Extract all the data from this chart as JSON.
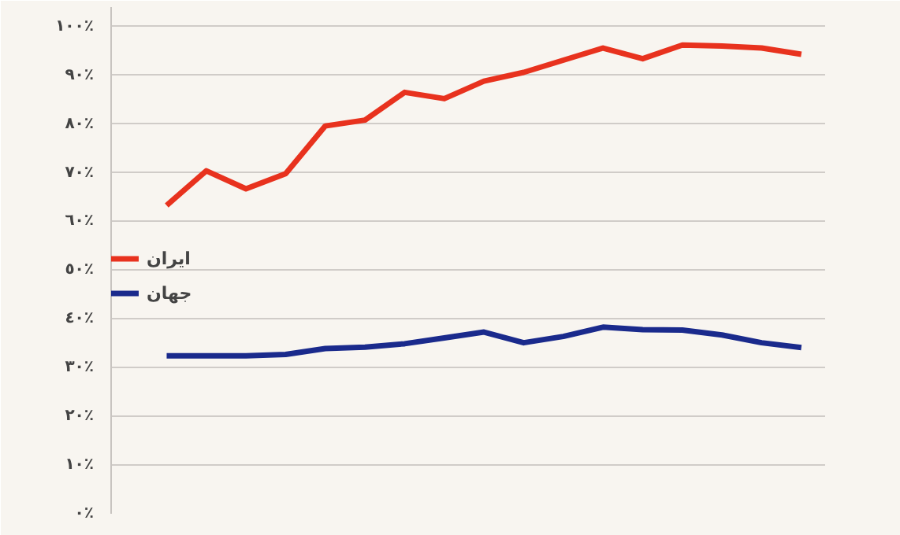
{
  "chart_data": {
    "type": "line",
    "categories": [
      null,
      null,
      null,
      null,
      null,
      null,
      null,
      null,
      null,
      null,
      null,
      null,
      null,
      null,
      null,
      null,
      null
    ],
    "series": [
      {
        "name": "ایران",
        "color": "#e8321e",
        "values": [
          63.3,
          70.4,
          66.7,
          69.8,
          79.6,
          80.8,
          86.5,
          85.2,
          88.8,
          90.6,
          93.1,
          95.6,
          93.4,
          96.2,
          96.0,
          95.6,
          94.3
        ]
      },
      {
        "name": "جهان",
        "color": "#1a2a8c",
        "values": [
          32.4,
          32.4,
          32.4,
          32.7,
          33.9,
          34.2,
          34.9,
          36.1,
          37.3,
          35.1,
          36.4,
          38.3,
          37.8,
          37.7,
          36.7,
          35.1,
          34.1
        ]
      }
    ],
    "ylim": [
      0,
      104
    ],
    "yticks": [
      {
        "value": 0,
        "label": "٠٪"
      },
      {
        "value": 10,
        "label": "١٠٪"
      },
      {
        "value": 20,
        "label": "٢٠٪"
      },
      {
        "value": 30,
        "label": "٣٠٪"
      },
      {
        "value": 40,
        "label": "٤٠٪"
      },
      {
        "value": 50,
        "label": "٥٠٪"
      },
      {
        "value": 60,
        "label": "٦٠٪"
      },
      {
        "value": 70,
        "label": "٧٠٪"
      },
      {
        "value": 80,
        "label": "٨٠٪"
      },
      {
        "value": 90,
        "label": "٩٠٪"
      },
      {
        "value": 100,
        "label": "١٠٠٪"
      }
    ],
    "grid": "y",
    "legend": "left",
    "marker": "none",
    "line_style": "solid"
  }
}
